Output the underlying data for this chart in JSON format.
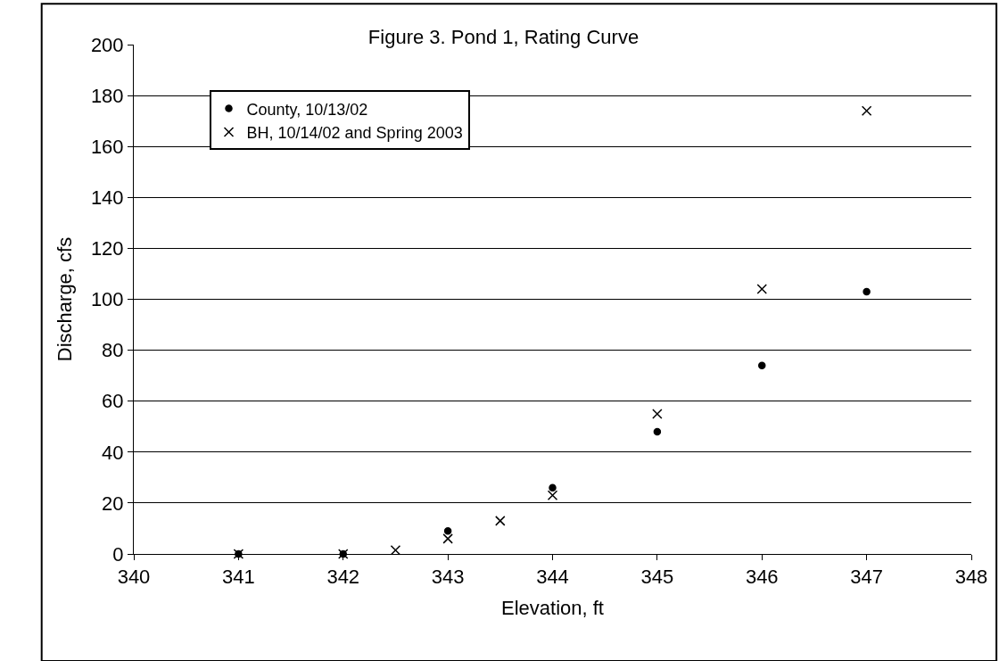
{
  "chart_data": {
    "type": "scatter",
    "title": "Figure 3. Pond 1, Rating Curve",
    "xlabel": "Elevation, ft",
    "ylabel": "Discharge, cfs",
    "series": [
      {
        "name": "County, 10/13/02",
        "color": "#000000",
        "marker": "circle",
        "x": [
          341,
          342,
          343,
          344,
          345,
          346,
          347
        ],
        "values": [
          0,
          0,
          9,
          26,
          48,
          74,
          103
        ]
      },
      {
        "name": "BH, 10/14/02 and Spring 2003",
        "color": "#000000",
        "marker": "cross",
        "x": [
          341,
          342,
          342.5,
          343,
          343.5,
          344,
          345,
          346,
          347
        ],
        "values": [
          0,
          0,
          1.5,
          6,
          13,
          23,
          55,
          104,
          174
        ]
      }
    ],
    "xlim": [
      340,
      348
    ],
    "xticks": [
      340,
      341,
      342,
      343,
      344,
      345,
      346,
      347,
      348
    ],
    "ylim": [
      0,
      200
    ],
    "yticks": [
      0,
      20,
      40,
      60,
      80,
      100,
      120,
      140,
      160,
      180,
      200
    ],
    "grid": "y",
    "legend": "top left"
  }
}
